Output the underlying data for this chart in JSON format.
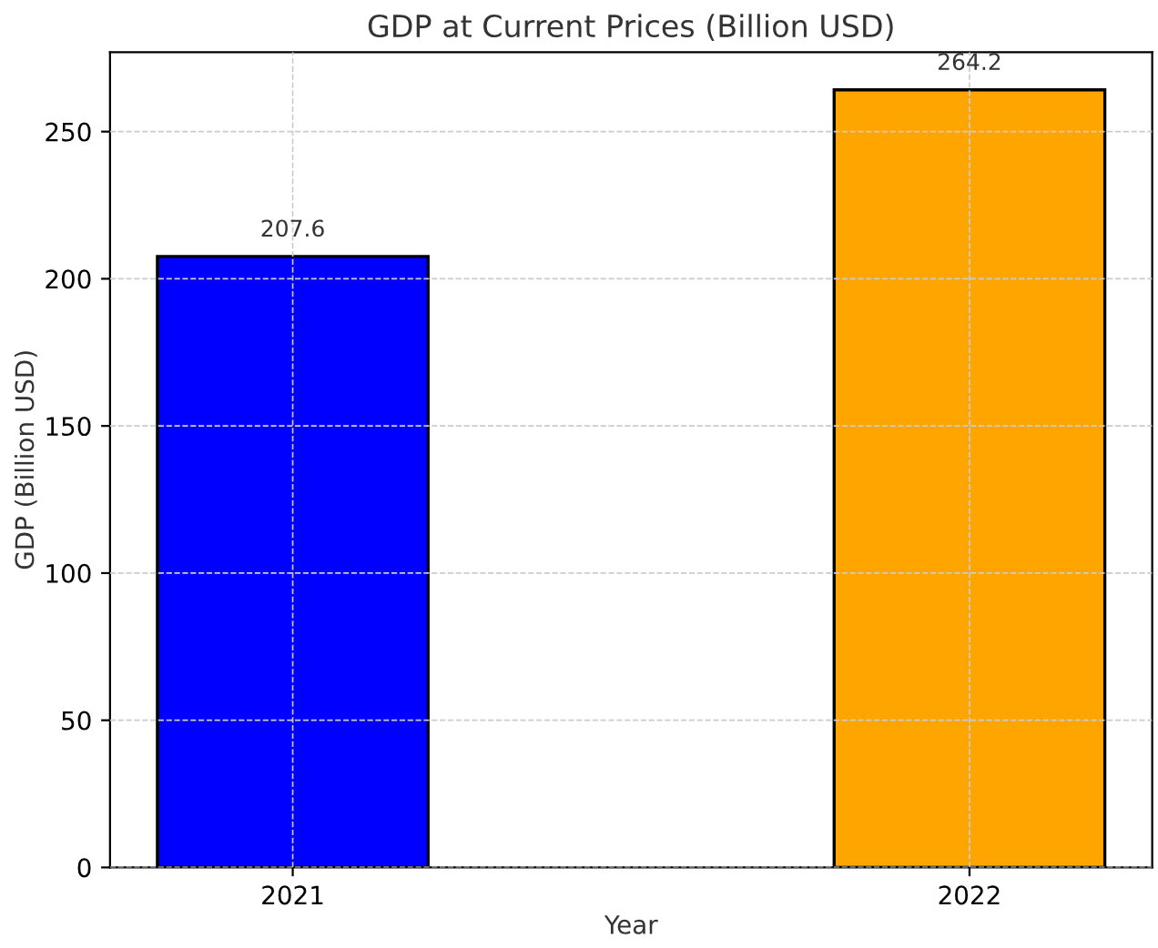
{
  "chart_data": {
    "type": "bar",
    "title": "GDP at Current Prices (Billion USD)",
    "xlabel": "Year",
    "ylabel": "GDP (Billion USD)",
    "categories": [
      "2021",
      "2022"
    ],
    "values": [
      207.6,
      264.2
    ],
    "colors": [
      "#0000ff",
      "#ffa500"
    ],
    "ylim": [
      0,
      277
    ],
    "yticks": [
      0,
      50,
      100,
      150,
      200,
      250
    ],
    "grid": true,
    "data_labels": true
  }
}
